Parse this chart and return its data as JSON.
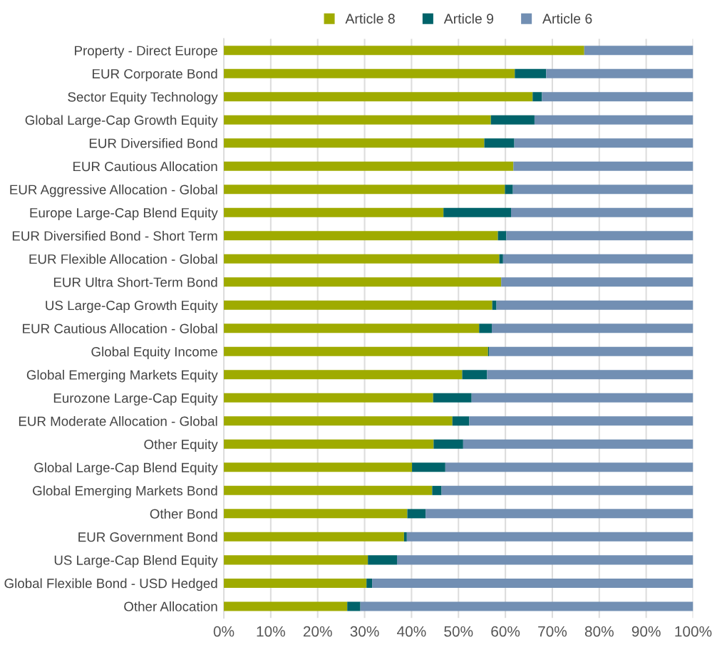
{
  "chart_data": {
    "type": "bar",
    "orientation": "horizontal",
    "stacked": true,
    "categories": [
      "Property - Direct Europe",
      "EUR Corporate Bond",
      "Sector Equity Technology",
      "Global Large-Cap Growth Equity",
      "EUR Diversified Bond",
      "EUR Cautious Allocation",
      "EUR Aggressive Allocation - Global",
      "Europe Large-Cap Blend Equity",
      "EUR Diversified Bond - Short Term",
      "EUR Flexible Allocation - Global",
      "EUR Ultra Short-Term Bond",
      "US Large-Cap Growth Equity",
      "EUR Cautious Allocation - Global",
      "Global Equity Income",
      "Global Emerging Markets Equity",
      "Eurozone Large-Cap Equity",
      "EUR Moderate Allocation - Global",
      "Other Equity",
      "Global Large-Cap Blend Equity",
      "Global Emerging Markets Bond",
      "Other Bond",
      "EUR Government Bond",
      "US Large-Cap Blend Equity",
      "Global Flexible Bond - USD Hedged",
      "Other Allocation"
    ],
    "series": [
      {
        "name": "Article 8",
        "color": "#9fab00",
        "values": [
          76.8,
          62.0,
          65.8,
          56.9,
          55.5,
          61.7,
          59.9,
          46.8,
          58.4,
          58.7,
          59.1,
          57.2,
          54.4,
          56.3,
          50.8,
          44.6,
          48.7,
          44.7,
          40.1,
          44.4,
          39.1,
          38.4,
          30.7,
          30.4,
          26.3
        ]
      },
      {
        "name": "Article 9",
        "color": "#00636a",
        "values": [
          0,
          6.7,
          2.0,
          9.3,
          6.4,
          0,
          1.7,
          14.4,
          1.8,
          0.8,
          0,
          0.9,
          2.7,
          0.2,
          5.3,
          8.2,
          3.6,
          6.3,
          7.1,
          2.0,
          3.9,
          0.6,
          6.2,
          1.2,
          2.8
        ]
      },
      {
        "name": "Article 6",
        "color": "#728fb3",
        "values": [
          23.2,
          31.3,
          32.2,
          33.8,
          38.1,
          38.3,
          38.4,
          38.8,
          39.8,
          40.5,
          40.9,
          41.9,
          42.9,
          43.5,
          43.9,
          47.2,
          47.7,
          49.0,
          52.8,
          53.6,
          57.0,
          61.0,
          63.1,
          68.4,
          70.9
        ]
      }
    ],
    "xlim": [
      0,
      100
    ],
    "xticks": [
      {
        "value": 0,
        "label": "0%"
      },
      {
        "value": 10,
        "label": "10%"
      },
      {
        "value": 20,
        "label": "20%"
      },
      {
        "value": 30,
        "label": "30%"
      },
      {
        "value": 40,
        "label": "40%"
      },
      {
        "value": 50,
        "label": "50%"
      },
      {
        "value": 60,
        "label": "60%"
      },
      {
        "value": 70,
        "label": "70%"
      },
      {
        "value": 80,
        "label": "80%"
      },
      {
        "value": 90,
        "label": "90%"
      },
      {
        "value": 100,
        "label": "100%"
      }
    ],
    "grid": "x",
    "legend": "top"
  }
}
